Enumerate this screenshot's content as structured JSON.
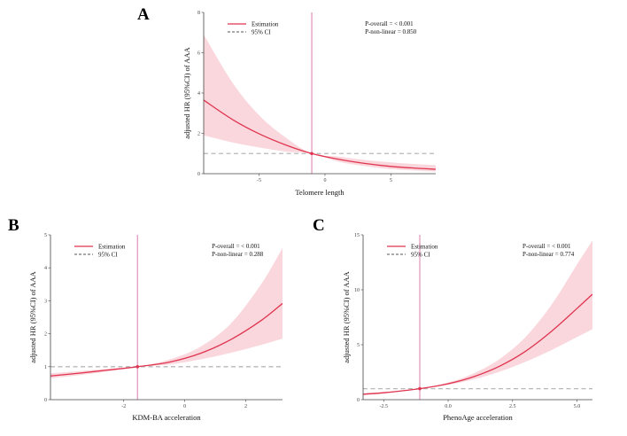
{
  "chart_data": [
    {
      "panel": "A",
      "type": "line",
      "xlabel": "Telomere length",
      "ylabel": "adjusted HR (95%CI) of AAA",
      "xlim": [
        -9.2,
        8.4
      ],
      "ylim": [
        0,
        8
      ],
      "xticks": [
        -5,
        0,
        5
      ],
      "xtick_labels": [
        "-5",
        "0",
        "5"
      ],
      "yticks": [
        0,
        2,
        4,
        6,
        8
      ],
      "ytick_labels": [
        "0",
        "2",
        "4",
        "6",
        "8"
      ],
      "reference_x": -1.0,
      "reference_hr": 1,
      "legend": [
        "Estimation",
        "95% CI"
      ],
      "legend_position": "top-left",
      "stats": [
        "P-overall = < 0.001",
        "P-non-linear = 0.850"
      ],
      "series": [
        {
          "kind": "estimate",
          "x": [
            -9.2,
            -7,
            -5,
            -3,
            -1,
            1,
            3,
            5,
            7,
            8.4
          ],
          "y": [
            3.65,
            2.68,
            1.98,
            1.43,
            1.0,
            0.72,
            0.51,
            0.36,
            0.27,
            0.22
          ]
        },
        {
          "kind": "ci_upper",
          "x": [
            -9.2,
            -7,
            -5,
            -3,
            -1,
            1,
            3,
            5,
            7,
            8.4
          ],
          "y": [
            6.9,
            4.5,
            2.9,
            1.8,
            1.0,
            0.85,
            0.68,
            0.56,
            0.47,
            0.42
          ]
        },
        {
          "kind": "ci_lower",
          "x": [
            -9.2,
            -7,
            -5,
            -3,
            -1,
            1,
            3,
            5,
            7,
            8.4
          ],
          "y": [
            1.9,
            1.55,
            1.3,
            1.1,
            1.0,
            0.6,
            0.38,
            0.23,
            0.15,
            0.11
          ]
        }
      ]
    },
    {
      "panel": "B",
      "type": "line",
      "xlabel": "KDM-BA acceleration",
      "ylabel": "adjusted HR (95%CI) of AAA",
      "xlim": [
        -4.4,
        3.2
      ],
      "ylim": [
        0,
        5
      ],
      "xticks": [
        -2,
        0,
        2
      ],
      "xtick_labels": [
        "-2",
        "0",
        "2"
      ],
      "yticks": [
        0,
        1,
        2,
        3,
        4,
        5
      ],
      "ytick_labels": [
        "0",
        "1",
        "2",
        "3",
        "4",
        "5"
      ],
      "reference_x": -1.55,
      "reference_hr": 1,
      "legend": [
        "Estimation",
        "95% CI"
      ],
      "legend_position": "top-left",
      "stats": [
        "P-overall = < 0.001",
        "P-non-linear = 0.288"
      ],
      "series": [
        {
          "kind": "estimate",
          "x": [
            -4.4,
            -3.5,
            -2.5,
            -1.55,
            -0.5,
            0.5,
            1.5,
            2.5,
            3.2
          ],
          "y": [
            0.72,
            0.8,
            0.9,
            1.0,
            1.14,
            1.4,
            1.82,
            2.4,
            2.92
          ]
        },
        {
          "kind": "ci_upper",
          "x": [
            -4.4,
            -3.5,
            -2.5,
            -1.55,
            -0.5,
            0.5,
            1.5,
            2.5,
            3.2
          ],
          "y": [
            0.8,
            0.86,
            0.94,
            1.0,
            1.22,
            1.6,
            2.3,
            3.5,
            4.6
          ]
        },
        {
          "kind": "ci_lower",
          "x": [
            -4.4,
            -3.5,
            -2.5,
            -1.55,
            -0.5,
            0.5,
            1.5,
            2.5,
            3.2
          ],
          "y": [
            0.65,
            0.74,
            0.86,
            1.0,
            1.07,
            1.22,
            1.42,
            1.66,
            1.85
          ]
        }
      ]
    },
    {
      "panel": "C",
      "type": "line",
      "xlabel": "PhenoAge acceleration",
      "ylabel": "adjusted HR (95%CI) of AAA",
      "xlim": [
        -3.3,
        5.6
      ],
      "ylim": [
        0,
        15
      ],
      "xticks": [
        -2.5,
        0,
        2.5,
        5
      ],
      "xtick_labels": [
        "-2.5",
        "0.0",
        "2.5",
        "5.0"
      ],
      "yticks": [
        0,
        5,
        10,
        15
      ],
      "ytick_labels": [
        "0",
        "5",
        "10",
        "15"
      ],
      "reference_x": -1.1,
      "reference_hr": 1,
      "legend": [
        "Estimation",
        "95% CI"
      ],
      "legend_position": "top-left",
      "stats": [
        "P-overall = < 0.001",
        "P-non-linear = 0.774"
      ],
      "series": [
        {
          "kind": "estimate",
          "x": [
            -3.3,
            -2.5,
            -1.1,
            0,
            1,
            2,
            3,
            4,
            5,
            5.6
          ],
          "y": [
            0.5,
            0.63,
            1.0,
            1.45,
            2.1,
            3.05,
            4.4,
            6.2,
            8.3,
            9.6
          ]
        },
        {
          "kind": "ci_upper",
          "x": [
            -3.3,
            -2.5,
            -1.1,
            0,
            1,
            2,
            3,
            4,
            5,
            5.6
          ],
          "y": [
            0.58,
            0.7,
            1.0,
            1.56,
            2.4,
            3.7,
            5.7,
            8.6,
            12.3,
            14.5
          ]
        },
        {
          "kind": "ci_lower",
          "x": [
            -3.3,
            -2.5,
            -1.1,
            0,
            1,
            2,
            3,
            4,
            5,
            5.6
          ],
          "y": [
            0.42,
            0.56,
            1.0,
            1.34,
            1.85,
            2.55,
            3.45,
            4.5,
            5.7,
            6.4
          ]
        }
      ]
    }
  ],
  "colors": {
    "estimate": "#e0344f",
    "ci_band": "#f7c9d1",
    "reference_vline": "#e39ac0",
    "reference_hline": "#b8b8b8",
    "axis": "#444444"
  }
}
